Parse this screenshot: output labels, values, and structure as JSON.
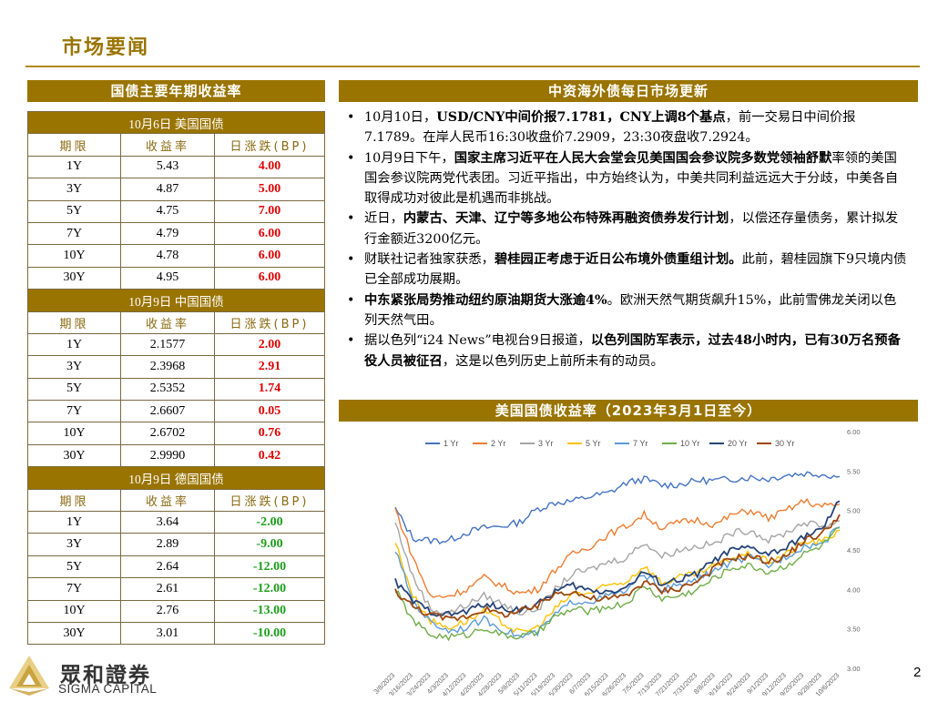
{
  "page_title": "市场要闻",
  "page_number": "2",
  "brand": {
    "name_cn": "眾和證券",
    "name_en": "SIGMA CAPITAL"
  },
  "left_header": "国债主要年期收益率",
  "right_header": "中资海外债每日市场更新",
  "chart_header": "美国国债收益率（2023年3月1日至今）",
  "bond_table": {
    "col_headers": [
      "期限",
      "收益率",
      "日涨跌(BP)"
    ],
    "sections": [
      {
        "title": "10月6日  美国国债",
        "rows": [
          {
            "tenor": "1Y",
            "yield": "5.43",
            "change": "4.00",
            "dir": "up"
          },
          {
            "tenor": "3Y",
            "yield": "4.87",
            "change": "5.00",
            "dir": "up"
          },
          {
            "tenor": "5Y",
            "yield": "4.75",
            "change": "7.00",
            "dir": "up"
          },
          {
            "tenor": "7Y",
            "yield": "4.79",
            "change": "6.00",
            "dir": "up"
          },
          {
            "tenor": "10Y",
            "yield": "4.78",
            "change": "6.00",
            "dir": "up"
          },
          {
            "tenor": "30Y",
            "yield": "4.95",
            "change": "6.00",
            "dir": "up"
          }
        ]
      },
      {
        "title": "10月9日  中国国债",
        "rows": [
          {
            "tenor": "1Y",
            "yield": "2.1577",
            "change": "2.00",
            "dir": "up"
          },
          {
            "tenor": "3Y",
            "yield": "2.3968",
            "change": "2.91",
            "dir": "up"
          },
          {
            "tenor": "5Y",
            "yield": "2.5352",
            "change": "1.74",
            "dir": "up"
          },
          {
            "tenor": "7Y",
            "yield": "2.6607",
            "change": "0.05",
            "dir": "up"
          },
          {
            "tenor": "10Y",
            "yield": "2.6702",
            "change": "0.76",
            "dir": "up"
          },
          {
            "tenor": "30Y",
            "yield": "2.9990",
            "change": "0.42",
            "dir": "up"
          }
        ]
      },
      {
        "title": "10月9日  德国国债",
        "rows": [
          {
            "tenor": "1Y",
            "yield": "3.64",
            "change": "-2.00",
            "dir": "dn"
          },
          {
            "tenor": "3Y",
            "yield": "2.89",
            "change": "-9.00",
            "dir": "dn"
          },
          {
            "tenor": "5Y",
            "yield": "2.64",
            "change": "-12.00",
            "dir": "dn"
          },
          {
            "tenor": "7Y",
            "yield": "2.61",
            "change": "-12.00",
            "dir": "dn"
          },
          {
            "tenor": "10Y",
            "yield": "2.76",
            "change": "-13.00",
            "dir": "dn"
          },
          {
            "tenor": "30Y",
            "yield": "3.01",
            "change": "-10.00",
            "dir": "dn"
          }
        ]
      }
    ]
  },
  "news": [
    [
      {
        "t": "10月10日，"
      },
      {
        "t": "USD/CNY中间价报7.1781，CNY上调8个基点",
        "b": true
      },
      {
        "t": "，前一交易日中间价报7.1789。在岸人民币16:30收盘价7.2909，23:30夜盘收7.2924。"
      }
    ],
    [
      {
        "t": "10月9日下午，"
      },
      {
        "t": "国家主席习近平在人民大会堂会见美国国会参议院多数党领袖舒默",
        "b": true
      },
      {
        "t": "率领的美国国会参议院两党代表团。习近平指出，中方始终认为，中美共同利益远远大于分歧，中美各自取得成功对彼此是机遇而非挑战。"
      }
    ],
    [
      {
        "t": "近日，"
      },
      {
        "t": "内蒙古、天津、辽宁等多地公布特殊再融资债券发行计划",
        "b": true
      },
      {
        "t": "，以偿还存量债务，累计拟发行金额近3200亿元。"
      }
    ],
    [
      {
        "t": "财联社记者独家获悉，"
      },
      {
        "t": "碧桂园正考虑于近日公布境外债重组计划。",
        "b": true
      },
      {
        "t": "此前，碧桂园旗下9只境内债已全部成功展期。"
      }
    ],
    [
      {
        "t": "中东紧张局势推动纽约原油期货大涨逾4%",
        "b": true
      },
      {
        "t": "。欧洲天然气期货飙升15%，此前雪佛龙关闭以色列天然气田。"
      }
    ],
    [
      {
        "t": "据以色列“i24 News”电视台9日报道，"
      },
      {
        "t": "以色列国防军表示，过去48小时内，已有30万名预备役人员被征召",
        "b": true
      },
      {
        "t": "，这是以色列历史上前所未有的动员。"
      }
    ]
  ],
  "chart_data": {
    "type": "line",
    "title": "美国国债收益率（2023年3月1日至今）",
    "x": [
      "3/8/2023",
      "3/16/2023",
      "3/24/2023",
      "4/3/2023",
      "4/12/2023",
      "4/20/2023",
      "4/28/2023",
      "5/8/2023",
      "5/16/2023",
      "5/24/2023",
      "6/1/2023",
      "6/9/2023",
      "6/19/2023",
      "6/27/2023",
      "7/6/2023",
      "7/14/2023",
      "7/24/2023",
      "8/1/2023",
      "8/9/2023",
      "8/17/2023",
      "8/25/2023",
      "9/5/2023",
      "9/13/2023",
      "9/21/2023",
      "9/29/2023",
      "10/6/2023"
    ],
    "x_tick_labels": [
      "3/8/2023",
      "3/16/2023",
      "3/24/2023",
      "4/3/2023",
      "4/12/2023",
      "4/20/2023",
      "4/28/2023",
      "5/8/2023",
      "5/11/2023",
      "5/19/2023",
      "5/30/2023",
      "6/7/2023",
      "6/15/2023",
      "6/26/2023",
      "7/5/2023",
      "7/13/2023",
      "7/21/2023",
      "7/31/2023",
      "8/8/2023",
      "8/16/2023",
      "8/24/2023",
      "9/1/2023",
      "9/12/2023",
      "9/20/2023",
      "9/28/2023",
      "10/6/2023"
    ],
    "ylim": [
      3.0,
      6.0
    ],
    "y_ticks": [
      "3.00",
      "3.50",
      "4.00",
      "4.50",
      "5.00",
      "5.50",
      "6.00"
    ],
    "legend_position": "top",
    "series": [
      {
        "name": "1 Yr",
        "color": "#4472c4",
        "values": [
          5.02,
          4.65,
          4.62,
          4.62,
          4.72,
          4.78,
          4.8,
          4.85,
          5.02,
          5.1,
          5.12,
          5.18,
          5.22,
          5.35,
          5.4,
          5.32,
          5.33,
          5.38,
          5.38,
          5.4,
          5.42,
          5.4,
          5.45,
          5.47,
          5.46,
          5.43
        ]
      },
      {
        "name": "2 Yr",
        "color": "#ed7d31",
        "values": [
          5.02,
          4.4,
          3.9,
          3.92,
          4.0,
          4.15,
          4.05,
          3.95,
          4.0,
          4.25,
          4.45,
          4.55,
          4.7,
          4.8,
          4.95,
          4.78,
          4.85,
          4.88,
          4.82,
          4.95,
          5.0,
          4.9,
          5.0,
          5.12,
          5.05,
          5.08
        ]
      },
      {
        "name": "3 Yr",
        "color": "#a5a5a5",
        "values": [
          4.85,
          4.15,
          3.75,
          3.7,
          3.8,
          3.92,
          3.82,
          3.7,
          3.75,
          4.0,
          4.2,
          4.25,
          4.35,
          4.4,
          4.6,
          4.42,
          4.5,
          4.55,
          4.58,
          4.72,
          4.75,
          4.62,
          4.72,
          4.85,
          4.8,
          4.87
        ]
      },
      {
        "name": "5 Yr",
        "color": "#ffc000",
        "values": [
          4.6,
          3.92,
          3.6,
          3.52,
          3.6,
          3.72,
          3.58,
          3.45,
          3.52,
          3.75,
          3.95,
          3.95,
          4.05,
          4.1,
          4.3,
          4.08,
          4.15,
          4.2,
          4.3,
          4.4,
          4.45,
          4.35,
          4.45,
          4.6,
          4.6,
          4.75
        ]
      },
      {
        "name": "7 Yr",
        "color": "#5b9bd5",
        "values": [
          4.5,
          3.85,
          3.58,
          3.48,
          3.52,
          3.62,
          3.5,
          3.4,
          3.45,
          3.68,
          3.85,
          3.85,
          3.92,
          3.98,
          4.2,
          4.0,
          4.05,
          4.12,
          4.25,
          4.35,
          4.4,
          4.3,
          4.42,
          4.55,
          4.58,
          4.79
        ]
      },
      {
        "name": "10 Yr",
        "color": "#70ad47",
        "values": [
          4.0,
          3.6,
          3.42,
          3.4,
          3.42,
          3.52,
          3.42,
          3.4,
          3.45,
          3.65,
          3.75,
          3.72,
          3.78,
          3.82,
          4.05,
          3.88,
          3.92,
          4.0,
          4.15,
          4.28,
          4.3,
          4.22,
          4.3,
          4.45,
          4.55,
          4.78
        ]
      },
      {
        "name": "20 Yr",
        "color": "#264478",
        "values": [
          4.1,
          3.85,
          3.72,
          3.68,
          3.72,
          3.82,
          3.75,
          3.75,
          3.8,
          3.98,
          4.05,
          3.98,
          3.98,
          4.02,
          4.22,
          4.08,
          4.12,
          4.2,
          4.38,
          4.5,
          4.52,
          4.45,
          4.52,
          4.68,
          4.75,
          5.12
        ]
      },
      {
        "name": "30 Yr",
        "color": "#9e480e",
        "values": [
          3.98,
          3.78,
          3.68,
          3.62,
          3.66,
          3.75,
          3.68,
          3.72,
          3.78,
          3.95,
          3.98,
          3.88,
          3.88,
          3.92,
          4.1,
          3.98,
          4.02,
          4.1,
          4.28,
          4.4,
          4.42,
          4.35,
          4.42,
          4.62,
          4.7,
          4.95
        ]
      }
    ]
  }
}
